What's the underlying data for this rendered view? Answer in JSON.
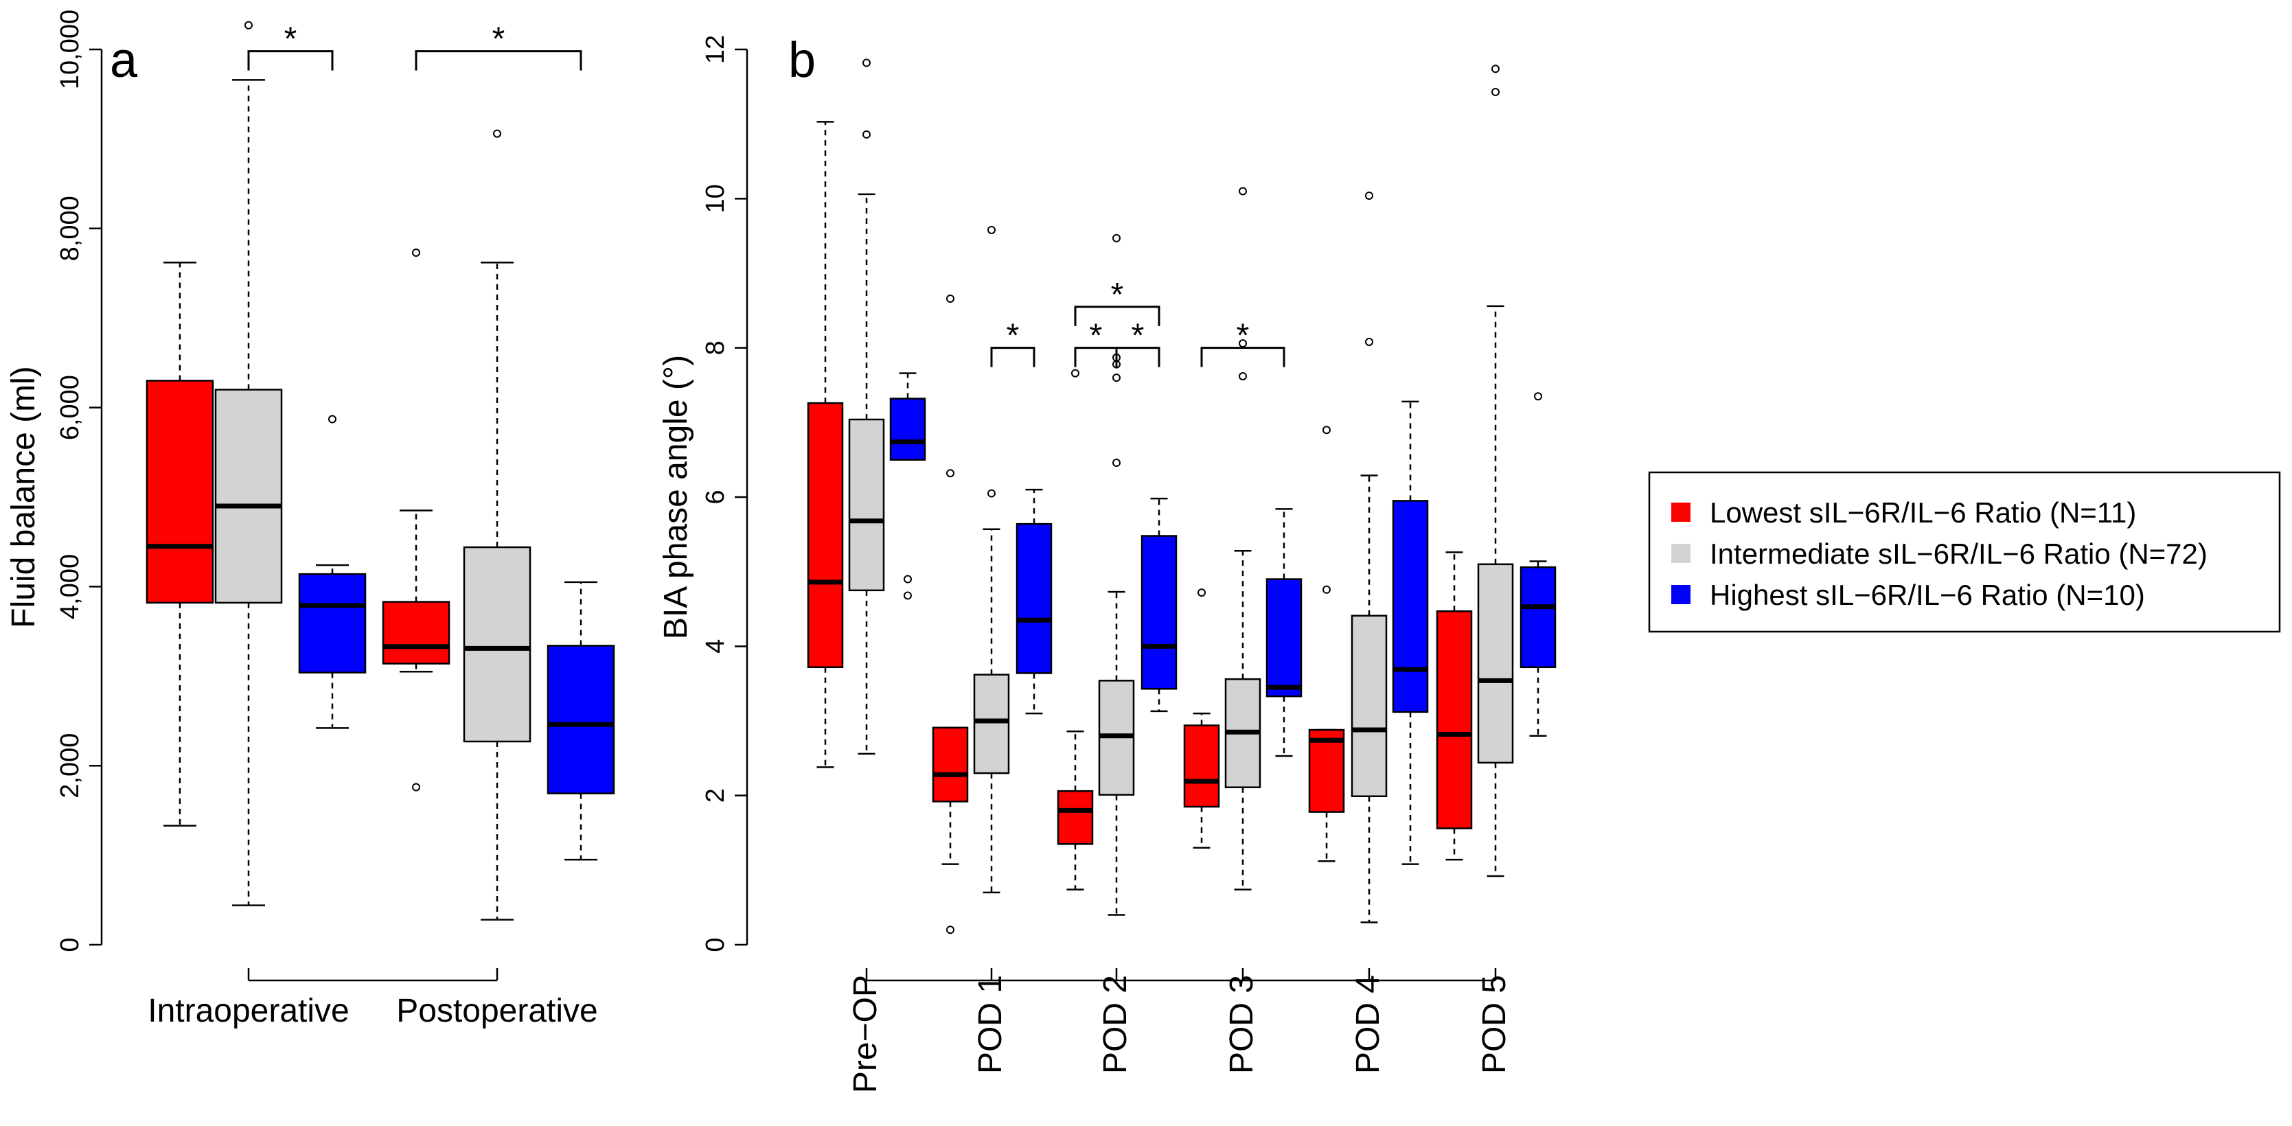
{
  "colors": {
    "lowest": "#ff0000",
    "intermediate": "#d3d3d3",
    "highest": "#0000ff"
  },
  "legend": {
    "items": [
      {
        "label": "Lowest sIL−6R/IL−6 Ratio (N=11)",
        "color": "#ff0000"
      },
      {
        "label": "Intermediate sIL−6R/IL−6 Ratio (N=72)",
        "color": "#d3d3d3"
      },
      {
        "label": "Highest sIL−6R/IL−6 Ratio (N=10)",
        "color": "#0000ff"
      }
    ]
  },
  "chart_data": [
    {
      "type": "boxplot",
      "panel": "a",
      "ylabel": "Fluid balance (ml)",
      "ylim": [
        0,
        10000
      ],
      "yticks": [
        0,
        2000,
        4000,
        6000,
        8000,
        10000
      ],
      "ytick_labels": [
        "0",
        "2,000",
        "4,000",
        "6,000",
        "8,000",
        "10,000"
      ],
      "groups": [
        {
          "label": "Intraoperative",
          "boxes": [
            {
              "group": "lowest",
              "min": 1330,
              "q1": 3820,
              "median": 4450,
              "q3": 6300,
              "max": 7620,
              "outliers": []
            },
            {
              "group": "intermediate",
              "min": 440,
              "q1": 3820,
              "median": 4900,
              "q3": 6200,
              "max": 9660,
              "outliers": [
                10270
              ]
            },
            {
              "group": "highest",
              "min": 2420,
              "q1": 3040,
              "median": 3790,
              "q3": 4140,
              "max": 4240,
              "outliers": [
                5870
              ]
            }
          ],
          "brackets": [
            {
              "from": 1,
              "to": 2,
              "label": "*",
              "y": 9980
            }
          ]
        },
        {
          "label": "Postoperative",
          "boxes": [
            {
              "group": "lowest",
              "min": 3050,
              "q1": 3140,
              "median": 3330,
              "q3": 3830,
              "max": 4850,
              "outliers": [
                7730,
                1760
              ]
            },
            {
              "group": "intermediate",
              "min": 280,
              "q1": 2270,
              "median": 3310,
              "q3": 4440,
              "max": 7620,
              "outliers": [
                9060
              ]
            },
            {
              "group": "highest",
              "min": 950,
              "q1": 1690,
              "median": 2460,
              "q3": 3340,
              "max": 4050,
              "outliers": []
            }
          ],
          "brackets": [
            {
              "from": 0,
              "to": 2,
              "label": "*",
              "y": 9980
            }
          ]
        }
      ]
    },
    {
      "type": "boxplot",
      "panel": "b",
      "ylabel": "BIA phase angle (°)",
      "ylim": [
        0,
        12
      ],
      "yticks": [
        0,
        2,
        4,
        6,
        8,
        10,
        12
      ],
      "ytick_labels": [
        "0",
        "2",
        "4",
        "6",
        "8",
        "10",
        "12"
      ],
      "groups": [
        {
          "label": "Pre−OP",
          "boxes": [
            {
              "group": "lowest",
              "min": 2.38,
              "q1": 3.72,
              "median": 4.86,
              "q3": 7.26,
              "max": 11.03,
              "outliers": []
            },
            {
              "group": "intermediate",
              "min": 2.56,
              "q1": 4.75,
              "median": 5.68,
              "q3": 7.04,
              "max": 10.06,
              "outliers": [
                11.82,
                10.86
              ]
            },
            {
              "group": "highest",
              "min": 6.5,
              "q1": 6.5,
              "median": 6.74,
              "q3": 7.32,
              "max": 7.66,
              "outliers": [
                4.9,
                4.68
              ]
            }
          ],
          "brackets": []
        },
        {
          "label": "POD 1",
          "boxes": [
            {
              "group": "lowest",
              "min": 1.08,
              "q1": 1.92,
              "median": 2.28,
              "q3": 2.91,
              "max": 2.91,
              "outliers": [
                8.66,
                6.32,
                0.2
              ]
            },
            {
              "group": "intermediate",
              "min": 0.7,
              "q1": 2.3,
              "median": 3.0,
              "q3": 3.62,
              "max": 5.57,
              "outliers": [
                9.58,
                6.05
              ]
            },
            {
              "group": "highest",
              "min": 3.1,
              "q1": 3.64,
              "median": 4.35,
              "q3": 5.64,
              "max": 6.1,
              "outliers": []
            }
          ],
          "brackets": [
            {
              "from": 1,
              "to": 2,
              "label": "*",
              "y": 8.0
            }
          ]
        },
        {
          "label": "POD 2",
          "boxes": [
            {
              "group": "lowest",
              "min": 0.74,
              "q1": 1.35,
              "median": 1.8,
              "q3": 2.06,
              "max": 2.86,
              "outliers": [
                7.66
              ]
            },
            {
              "group": "intermediate",
              "min": 0.4,
              "q1": 2.01,
              "median": 2.8,
              "q3": 3.54,
              "max": 4.73,
              "outliers": [
                9.47,
                7.87,
                7.78,
                7.6,
                6.46
              ]
            },
            {
              "group": "highest",
              "min": 3.13,
              "q1": 3.43,
              "median": 4.0,
              "q3": 5.48,
              "max": 5.98,
              "outliers": []
            }
          ],
          "brackets": [
            {
              "from": 0,
              "to": 2,
              "label": "*",
              "y": 8.55
            },
            {
              "from": 0,
              "to": 1,
              "label": "*",
              "y": 8.0
            },
            {
              "from": 1,
              "to": 2,
              "label": "*",
              "y": 8.0
            }
          ]
        },
        {
          "label": "POD 3",
          "boxes": [
            {
              "group": "lowest",
              "min": 1.3,
              "q1": 1.85,
              "median": 2.19,
              "q3": 2.94,
              "max": 3.1,
              "outliers": [
                4.72
              ]
            },
            {
              "group": "intermediate",
              "min": 0.74,
              "q1": 2.11,
              "median": 2.85,
              "q3": 3.56,
              "max": 5.28,
              "outliers": [
                10.1,
                8.06,
                7.62
              ]
            },
            {
              "group": "highest",
              "min": 2.53,
              "q1": 3.33,
              "median": 3.45,
              "q3": 4.9,
              "max": 5.84,
              "outliers": []
            }
          ],
          "brackets": [
            {
              "from": 0,
              "to": 2,
              "label": "*",
              "y": 8.0
            }
          ]
        },
        {
          "label": "POD 4",
          "boxes": [
            {
              "group": "lowest",
              "min": 1.12,
              "q1": 1.78,
              "median": 2.74,
              "q3": 2.88,
              "max": 2.88,
              "outliers": [
                6.9,
                4.76
              ]
            },
            {
              "group": "intermediate",
              "min": 0.3,
              "q1": 1.99,
              "median": 2.88,
              "q3": 4.41,
              "max": 6.29,
              "outliers": [
                10.04,
                8.08
              ]
            },
            {
              "group": "highest",
              "min": 1.08,
              "q1": 3.12,
              "median": 3.69,
              "q3": 5.95,
              "max": 7.28,
              "outliers": []
            }
          ],
          "brackets": []
        },
        {
          "label": "POD 5",
          "boxes": [
            {
              "group": "lowest",
              "min": 1.14,
              "q1": 1.56,
              "median": 2.82,
              "q3": 4.47,
              "max": 5.26,
              "outliers": []
            },
            {
              "group": "intermediate",
              "min": 0.92,
              "q1": 2.44,
              "median": 3.54,
              "q3": 5.1,
              "max": 8.56,
              "outliers": [
                11.74,
                11.43
              ]
            },
            {
              "group": "highest",
              "min": 2.8,
              "q1": 3.72,
              "median": 4.53,
              "q3": 5.06,
              "max": 5.14,
              "outliers": [
                7.35
              ]
            }
          ],
          "brackets": []
        }
      ]
    }
  ]
}
